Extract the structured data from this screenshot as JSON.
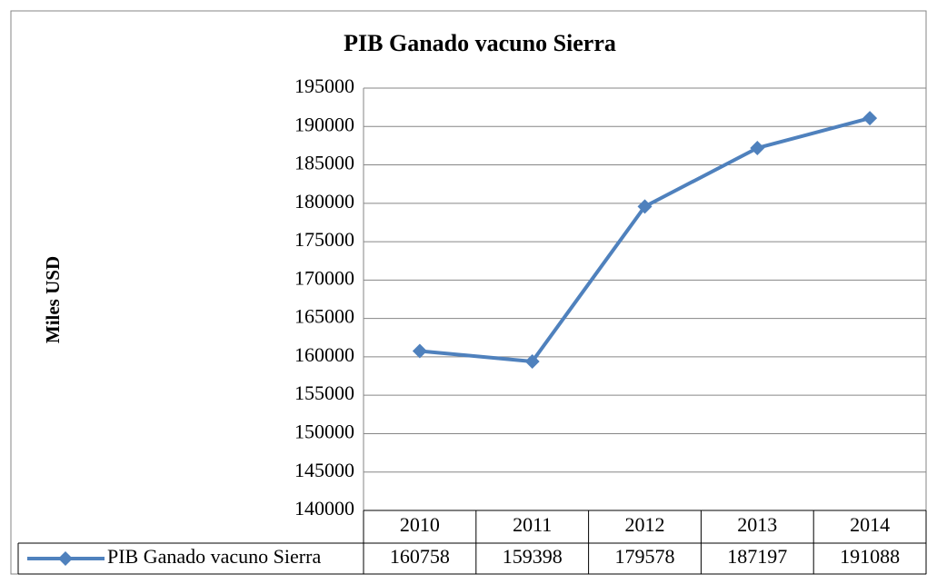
{
  "chart_data": {
    "type": "line",
    "title": "PIB Ganado vacuno Sierra",
    "y_label": "Miles USD",
    "categories": [
      "2010",
      "2011",
      "2012",
      "2013",
      "2014"
    ],
    "series": [
      {
        "name": "PIB Ganado vacuno Sierra",
        "color": "#4f81bd",
        "values": [
          160758,
          159398,
          179578,
          187197,
          191088
        ]
      }
    ],
    "ylim": [
      140000,
      195000
    ],
    "yticks": [
      140000,
      145000,
      150000,
      155000,
      160000,
      165000,
      170000,
      175000,
      180000,
      185000,
      190000,
      195000
    ],
    "grid": true,
    "data_table": true
  }
}
